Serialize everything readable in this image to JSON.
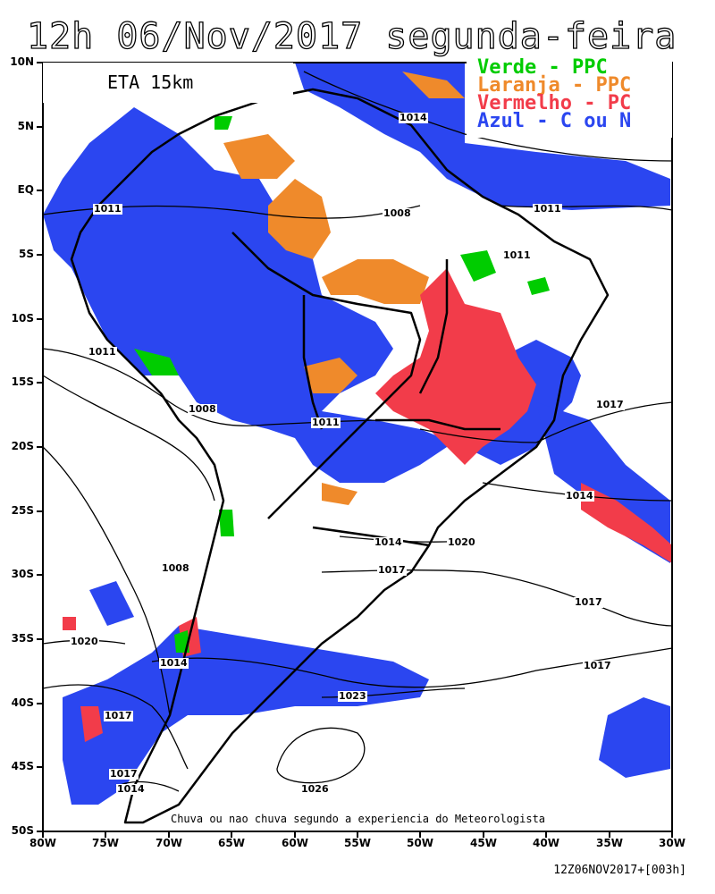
{
  "title": "12h 06/Nov/2017 segunda-feira",
  "model_label": "ETA 15km",
  "legend": [
    {
      "text": "Verde - PPC",
      "color": "#00cc00"
    },
    {
      "text": "Laranja - PPC",
      "color": "#ef8a2b"
    },
    {
      "text": "Vermelho - PC",
      "color": "#f23c4a"
    },
    {
      "text": "Azul - C ou N",
      "color": "#2b46f0"
    }
  ],
  "caption": "Chuva ou nao chuva segundo a experiencia do Meteorologista",
  "footer": "12Z06NOV2017+[003h]",
  "lat_labels": [
    "10N",
    "5N",
    "EQ",
    "5S",
    "10S",
    "15S",
    "20S",
    "25S",
    "30S",
    "35S",
    "40S",
    "45S",
    "50S"
  ],
  "lon_labels": [
    "80W",
    "75W",
    "70W",
    "65W",
    "60W",
    "55W",
    "50W",
    "45W",
    "40W",
    "35W",
    "30W"
  ],
  "isobar_labels": [
    "1014",
    "1011",
    "1008",
    "1011",
    "1011",
    "1008",
    "1011",
    "1017",
    "1011",
    "1014",
    "1014",
    "1020",
    "1011",
    "1008",
    "1017",
    "1017",
    "1020",
    "1014",
    "1017",
    "1023",
    "1017",
    "1017",
    "1014",
    "1026"
  ]
}
